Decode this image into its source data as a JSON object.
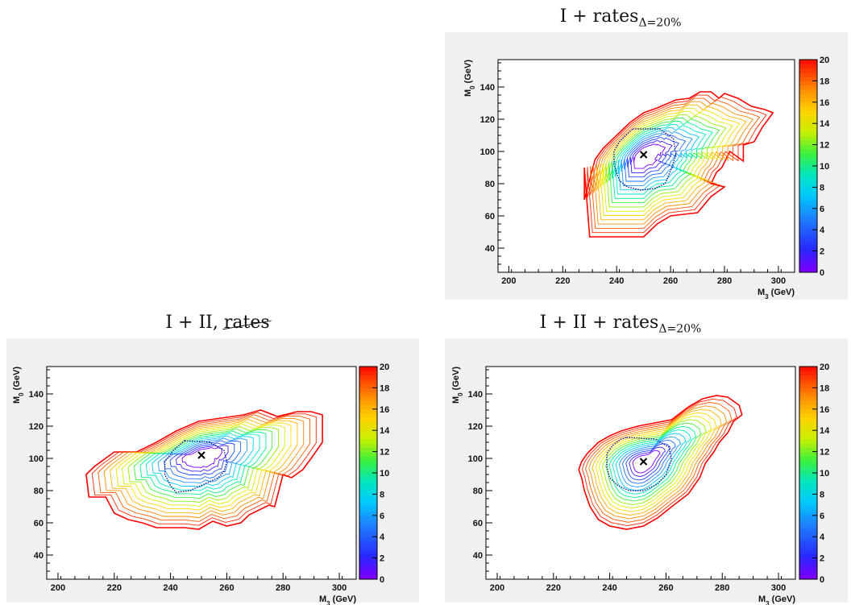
{
  "chart_data": [
    {
      "type": "contour",
      "panel": "top-right",
      "title": "I + rates",
      "title_sub": "Δ=20%",
      "xlabel": "M_3 (GeV)",
      "ylabel": "M_0 (GeV)",
      "xlim": [
        196,
        306
      ],
      "ylim": [
        25,
        157
      ],
      "xticks": [
        200,
        220,
        240,
        260,
        280,
        300
      ],
      "yticks": [
        40,
        60,
        80,
        100,
        120,
        140
      ],
      "zlim": [
        0,
        20
      ],
      "zticks": [
        0,
        2,
        4,
        6,
        8,
        10,
        12,
        14,
        16,
        18,
        20
      ],
      "best_fit": {
        "x": 250,
        "y": 98
      },
      "inner_contour": {
        "x": [
          246,
          256,
          261,
          262,
          260,
          258,
          254,
          249,
          244,
          241,
          239,
          239,
          241,
          244,
          246
        ],
        "y": [
          114,
          114,
          108,
          98,
          88,
          80,
          77,
          76,
          78,
          82,
          92,
          100,
          106,
          111,
          114
        ]
      },
      "outer_boundary": {
        "x": [
          228,
          228,
          232,
          235,
          240,
          245,
          250,
          255,
          262,
          267,
          270,
          271,
          275,
          278,
          280,
          285,
          290,
          295,
          298,
          294,
          291,
          287,
          287,
          282,
          279,
          277,
          275,
          280,
          275,
          270,
          265,
          260,
          255,
          250,
          240,
          230,
          230,
          228
        ],
        "y": [
          90,
          70,
          95,
          102,
          110,
          118,
          124,
          127,
          132,
          133,
          136,
          137,
          137,
          133,
          136,
          133,
          128,
          126,
          124,
          115,
          106,
          104,
          94,
          100,
          90,
          87,
          80,
          78,
          72,
          62,
          61,
          60,
          55,
          47,
          47,
          47,
          47,
          90
        ]
      }
    },
    {
      "type": "contour",
      "panel": "bottom-left",
      "title": "I + II, ",
      "title_struck": "rates",
      "xlabel": "M_3 (GeV)",
      "ylabel": "M_0 (GeV)",
      "xlim": [
        196,
        306
      ],
      "ylim": [
        25,
        157
      ],
      "xticks": [
        200,
        220,
        240,
        260,
        280,
        300
      ],
      "yticks": [
        40,
        60,
        80,
        100,
        120,
        140
      ],
      "zlim": [
        0,
        20
      ],
      "zticks": [
        0,
        2,
        4,
        6,
        8,
        10,
        12,
        14,
        16,
        18,
        20
      ],
      "best_fit": {
        "x": 251,
        "y": 102
      },
      "inner_contour": {
        "x": [
          245,
          254,
          259,
          260,
          259,
          257,
          252,
          247,
          242,
          240,
          238,
          238,
          241,
          245
        ],
        "y": [
          111,
          110,
          105,
          98,
          92,
          88,
          84,
          80,
          79,
          83,
          90,
          98,
          105,
          111
        ]
      },
      "outer_boundary": {
        "x": [
          210,
          213,
          220,
          228,
          235,
          242,
          250,
          258,
          266,
          272,
          278,
          285,
          290,
          294,
          294,
          290,
          287,
          283,
          280,
          277,
          275,
          268,
          265,
          260,
          255,
          250,
          245,
          240,
          235,
          230,
          225,
          220,
          217,
          211,
          210
        ],
        "y": [
          90,
          95,
          104,
          104,
          110,
          117,
          123,
          125,
          127,
          130,
          126,
          129,
          129,
          127,
          110,
          100,
          93,
          88,
          90,
          70,
          71,
          65,
          60,
          58,
          61,
          56,
          57,
          57,
          57,
          60,
          62,
          66,
          76,
          76,
          90
        ]
      }
    },
    {
      "type": "contour",
      "panel": "bottom-right",
      "title": "I + II + rates",
      "title_sub": "Δ=20%",
      "xlabel": "M_3 (GeV)",
      "ylabel": "M_0 (GeV)",
      "xlim": [
        196,
        306
      ],
      "ylim": [
        25,
        157
      ],
      "xticks": [
        200,
        220,
        240,
        260,
        280,
        300
      ],
      "yticks": [
        40,
        60,
        80,
        100,
        120,
        140
      ],
      "zlim": [
        0,
        20
      ],
      "zticks": [
        0,
        2,
        4,
        6,
        8,
        10,
        12,
        14,
        16,
        18,
        20
      ],
      "best_fit": {
        "x": 252,
        "y": 98
      },
      "inner_contour": {
        "x": [
          246,
          256,
          261,
          262,
          260,
          257,
          252,
          247,
          243,
          240,
          239,
          239,
          241,
          244,
          246
        ],
        "y": [
          113,
          112,
          107,
          99,
          90,
          84,
          80,
          80,
          83,
          88,
          95,
          103,
          108,
          112,
          113
        ]
      },
      "outer_boundary": {
        "x": [
          230,
          232,
          236,
          240,
          244,
          250,
          256,
          262,
          268,
          273,
          278,
          282,
          286,
          287,
          284,
          282,
          279,
          277,
          274,
          272,
          268,
          262,
          257,
          252,
          246,
          240,
          236,
          233,
          231,
          230,
          229,
          230
        ],
        "y": [
          98,
          103,
          110,
          114,
          117,
          120,
          122,
          124,
          132,
          137,
          139,
          138,
          133,
          127,
          123,
          116,
          110,
          104,
          97,
          88,
          78,
          70,
          63,
          58,
          56,
          58,
          62,
          70,
          80,
          88,
          93,
          98
        ]
      }
    }
  ]
}
